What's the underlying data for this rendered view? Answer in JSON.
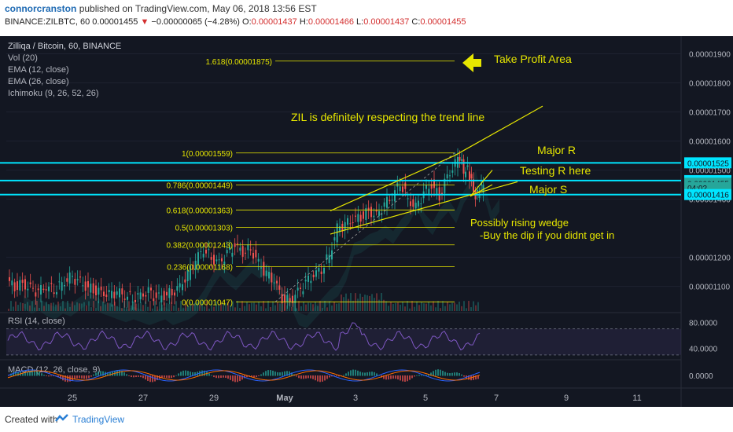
{
  "header": {
    "author": "connorcranston",
    "published": "published on TradingView.com, May 06, 2018 13:56 EST",
    "symbol": "BINANCE:ZILBTC, 60",
    "last": "0.00001455",
    "change": "−0.00000065 (−4.28%)",
    "o_label": "O:",
    "o_value": "0.00001437",
    "h_label": "H:",
    "h_value": "0.00001466",
    "l_label": "L:",
    "l_value": "0.00001437",
    "c_label": "C:",
    "c_value": "0.00001455"
  },
  "legend": [
    "Zilliqa / Bitcoin, 60, BINANCE",
    "Vol (20)",
    "EMA (12, close)",
    "EMA (26, close)",
    "Ichimoku (9, 26, 52, 26)"
  ],
  "rsi_label": "RSI (14, close)",
  "macd_label": "MACD (12, 26, close, 9)",
  "footer": {
    "created": "Created with",
    "brand": "TradingView"
  },
  "colors": {
    "bg": "#131722",
    "cyan": "#00e5ff",
    "fib": "#e6e600",
    "axis_text": "#b2b5be",
    "up": "#26a69a",
    "down": "#ef5350"
  },
  "chart_data": [
    {
      "type": "line",
      "title": "Zilliqa / Bitcoin, 60, BINANCE",
      "x_ticks": [
        "25",
        "27",
        "29",
        "May",
        "3",
        "5",
        "7",
        "9",
        "11"
      ],
      "ylim": [
        1.01e-05,
        1.95e-05
      ],
      "y_ticks": [
        {
          "v": 1.9e-05,
          "label": "0.00001900"
        },
        {
          "v": 1.8e-05,
          "label": "0.00001800"
        },
        {
          "v": 1.7e-05,
          "label": "0.00001700"
        },
        {
          "v": 1.6e-05,
          "label": "0.00001600"
        },
        {
          "v": 1.5e-05,
          "label": "0.00001500"
        },
        {
          "v": 1.4e-05,
          "label": "0.00001400"
        },
        {
          "v": 1.2e-05,
          "label": "0.00001200"
        },
        {
          "v": 1.1e-05,
          "label": "0.00001100"
        }
      ],
      "price_tags": [
        {
          "v": 1.525e-05,
          "label": "0.00001525",
          "color": "#00e5ff"
        },
        {
          "v": 1.464e-05,
          "label": "0.00001464",
          "color": "#00e5ff"
        },
        {
          "v": 1.455e-05,
          "label": "0.00001455",
          "color": "#26a69a"
        },
        {
          "v": 1.44e-05,
          "label": "04:02",
          "color": "#26a69a"
        },
        {
          "v": 1.416e-05,
          "label": "0.00001416",
          "color": "#00e5ff"
        }
      ],
      "fib_levels": [
        {
          "label": "1.618(0.00001875)",
          "v": 1.875e-05
        },
        {
          "label": "1(0.00001559)",
          "v": 1.559e-05
        },
        {
          "label": "0.786(0.00001449)",
          "v": 1.449e-05
        },
        {
          "label": "0.618(0.00001363)",
          "v": 1.363e-05
        },
        {
          "label": "0.5(0.00001303)",
          "v": 1.303e-05
        },
        {
          "label": "0.382(0.00001243)",
          "v": 1.243e-05
        },
        {
          "label": "0.236(0.00001168)",
          "v": 1.168e-05
        },
        {
          "label": "0(0.00001047)",
          "v": 1.047e-05
        }
      ],
      "horizontal_lines": [
        1.525e-05,
        1.464e-05,
        1.416e-05
      ],
      "annotations": [
        "Take Profit Area",
        "ZIL is definitely respecting the trend line",
        "Major R",
        "Testing R here",
        "Major S",
        "Possibly rising wedge",
        "-Buy the dip if you didnt get in"
      ],
      "price_path": [
        [
          0,
          1.12e-05
        ],
        [
          10,
          1.1e-05
        ],
        [
          20,
          1.11e-05
        ],
        [
          30,
          1.09e-05
        ],
        [
          40,
          1.08e-05
        ],
        [
          50,
          1.1e-05
        ],
        [
          60,
          1.09e-05
        ],
        [
          70,
          1.11e-05
        ],
        [
          80,
          1.13e-05
        ],
        [
          90,
          1.12e-05
        ],
        [
          100,
          1.1e-05
        ],
        [
          110,
          1.09e-05
        ],
        [
          120,
          1.08e-05
        ],
        [
          130,
          1.07e-05
        ],
        [
          140,
          1.08e-05
        ],
        [
          150,
          1.07e-05
        ],
        [
          160,
          1.06e-05
        ],
        [
          170,
          1.07e-05
        ],
        [
          180,
          1.08e-05
        ],
        [
          190,
          1.06e-05
        ],
        [
          200,
          1.07e-05
        ],
        [
          210,
          1.08e-05
        ],
        [
          220,
          1.1e-05
        ],
        [
          230,
          1.14e-05
        ],
        [
          240,
          1.19e-05
        ],
        [
          250,
          1.23e-05
        ],
        [
          260,
          1.2e-05
        ],
        [
          270,
          1.18e-05
        ],
        [
          280,
          1.21e-05
        ],
        [
          290,
          1.24e-05
        ],
        [
          300,
          1.22e-05
        ],
        [
          310,
          1.23e-05
        ],
        [
          320,
          1.18e-05
        ],
        [
          330,
          1.14e-05
        ],
        [
          340,
          1.12e-05
        ],
        [
          350,
          1.06e-05
        ],
        [
          360,
          1.05e-05
        ],
        [
          370,
          1.08e-05
        ],
        [
          380,
          1.11e-05
        ],
        [
          390,
          1.14e-05
        ],
        [
          400,
          1.16e-05
        ],
        [
          410,
          1.21e-05
        ],
        [
          420,
          1.3e-05
        ],
        [
          430,
          1.31e-05
        ],
        [
          440,
          1.33e-05
        ],
        [
          450,
          1.34e-05
        ],
        [
          460,
          1.36e-05
        ],
        [
          470,
          1.34e-05
        ],
        [
          480,
          1.38e-05
        ],
        [
          490,
          1.41e-05
        ],
        [
          500,
          1.46e-05
        ],
        [
          510,
          1.4e-05
        ],
        [
          520,
          1.37e-05
        ],
        [
          530,
          1.42e-05
        ],
        [
          540,
          1.45e-05
        ],
        [
          550,
          1.41e-05
        ],
        [
          560,
          1.48e-05
        ],
        [
          570,
          1.52e-05
        ],
        [
          575,
          1.55e-05
        ],
        [
          580,
          1.49e-05
        ],
        [
          585,
          1.5e-05
        ],
        [
          590,
          1.46e-05
        ],
        [
          595,
          1.41e-05
        ],
        [
          600,
          1.43e-05
        ],
        [
          605,
          1.45e-05
        ]
      ]
    },
    {
      "type": "line",
      "title": "RSI (14, close)",
      "y_ticks": [
        {
          "v": 80,
          "label": "80.0000"
        },
        {
          "v": 40,
          "label": "40.0000"
        }
      ],
      "ylim": [
        25,
        90
      ]
    },
    {
      "type": "line",
      "title": "MACD (12, 26, close, 9)",
      "y_ticks": [
        {
          "v": 0,
          "label": "0.0000"
        }
      ]
    }
  ]
}
